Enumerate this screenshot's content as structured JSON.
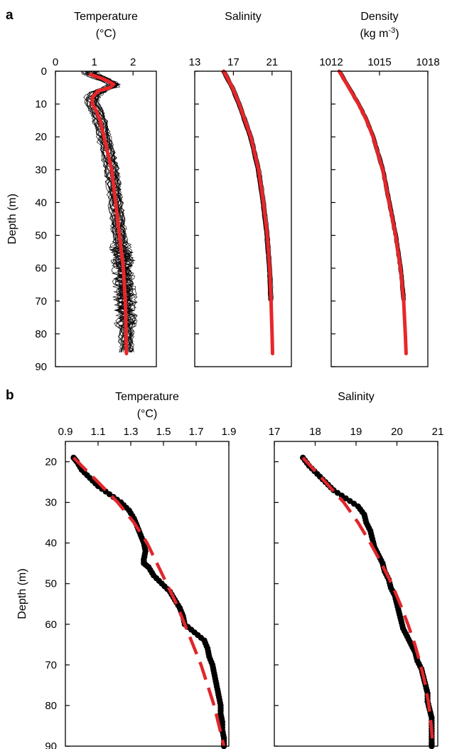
{
  "figure": {
    "panel_a_letter": "a",
    "panel_b_letter": "b"
  },
  "colors": {
    "profile": "#000000",
    "mean_profile": "#e8262a",
    "fit_line": "#e0262b"
  },
  "chart_data": [
    {
      "type": "line",
      "panel": "a",
      "axis_label": "Temperature",
      "axis_unit": "(°C)",
      "ylabel": "Depth (m)",
      "xlim": [
        0,
        2.6
      ],
      "x_ticks": [
        0,
        1,
        2
      ],
      "ylim": [
        0,
        90
      ],
      "y_inverted": true,
      "y_ticks": [
        0,
        10,
        20,
        30,
        40,
        50,
        60,
        70,
        80,
        90
      ],
      "mean_profile": {
        "depth": [
          1,
          2,
          3,
          4,
          5,
          6,
          8,
          10,
          12,
          15,
          20,
          25,
          30,
          40,
          50,
          60,
          70,
          80,
          86
        ],
        "values": [
          0.9,
          1.15,
          1.35,
          1.5,
          1.4,
          1.1,
          0.95,
          0.95,
          1.05,
          1.15,
          1.25,
          1.35,
          1.45,
          1.55,
          1.65,
          1.75,
          1.8,
          1.82,
          1.83
        ]
      }
    },
    {
      "type": "line",
      "panel": "a",
      "axis_label": "Salinity",
      "ylim": [
        0,
        90
      ],
      "y_inverted": true,
      "xlim": [
        13,
        23
      ],
      "x_ticks": [
        13,
        17,
        21
      ],
      "mean_profile": {
        "depth": [
          0,
          5,
          10,
          15,
          20,
          30,
          40,
          50,
          60,
          70,
          80,
          86
        ],
        "values": [
          16.0,
          16.9,
          17.6,
          18.2,
          18.8,
          19.6,
          20.1,
          20.5,
          20.75,
          20.9,
          21.0,
          21.05
        ]
      }
    },
    {
      "type": "line",
      "panel": "a",
      "axis_label": "Density",
      "axis_unit": "(kg m",
      "axis_unit_sup": "-3",
      "axis_unit_end": ")",
      "ylim": [
        0,
        90
      ],
      "y_inverted": true,
      "xlim": [
        1012,
        1018
      ],
      "x_ticks": [
        1012,
        1015,
        1018
      ],
      "mean_profile": {
        "depth": [
          0,
          5,
          10,
          15,
          20,
          30,
          40,
          50,
          60,
          70,
          80,
          86
        ],
        "values": [
          1012.5,
          1013.1,
          1013.7,
          1014.2,
          1014.6,
          1015.2,
          1015.6,
          1016.0,
          1016.3,
          1016.5,
          1016.6,
          1016.65
        ]
      }
    },
    {
      "type": "scatter",
      "panel": "b",
      "axis_label": "Temperature",
      "axis_unit": "(°C)",
      "ylabel": "Depth (m)",
      "xlim": [
        0.9,
        1.9
      ],
      "x_ticks": [
        0.9,
        1.1,
        1.3,
        1.5,
        1.7,
        1.9
      ],
      "ylim": [
        15,
        90
      ],
      "y_inverted": true,
      "y_ticks": [
        20,
        30,
        40,
        50,
        60,
        70,
        80,
        90
      ],
      "observations": {
        "depth": [
          19,
          20,
          22,
          24,
          26,
          28,
          30,
          32,
          34,
          36,
          38,
          40,
          42,
          44,
          45,
          46,
          48,
          50,
          52,
          54,
          56,
          58,
          60,
          62,
          64,
          66,
          68,
          70,
          72,
          74,
          76,
          78,
          80,
          82,
          84,
          86,
          88,
          90
        ],
        "values": [
          0.95,
          0.97,
          1.0,
          1.05,
          1.1,
          1.17,
          1.24,
          1.29,
          1.32,
          1.34,
          1.36,
          1.38,
          1.39,
          1.38,
          1.38,
          1.41,
          1.44,
          1.49,
          1.54,
          1.57,
          1.6,
          1.62,
          1.63,
          1.69,
          1.75,
          1.77,
          1.78,
          1.8,
          1.81,
          1.82,
          1.83,
          1.84,
          1.85,
          1.85,
          1.86,
          1.86,
          1.87,
          1.87
        ]
      },
      "fit": {
        "depth": [
          19,
          25,
          30,
          35,
          40,
          45,
          50,
          55,
          60,
          65,
          70,
          75,
          80,
          85,
          90
        ],
        "values": [
          0.95,
          1.1,
          1.22,
          1.32,
          1.4,
          1.46,
          1.52,
          1.58,
          1.63,
          1.68,
          1.73,
          1.77,
          1.81,
          1.84,
          1.87
        ]
      }
    },
    {
      "type": "scatter",
      "panel": "b",
      "axis_label": "Salinity",
      "xlim": [
        17,
        21
      ],
      "x_ticks": [
        17,
        18,
        19,
        20,
        21
      ],
      "ylim": [
        15,
        90
      ],
      "y_inverted": true,
      "observations": {
        "depth": [
          19,
          21,
          23,
          25,
          27,
          29,
          31,
          33,
          35,
          37,
          39,
          41,
          43,
          45,
          47,
          49,
          51,
          53,
          55,
          57,
          59,
          61,
          63,
          65,
          67,
          69,
          71,
          73,
          75,
          77,
          79,
          81,
          83,
          85,
          87,
          89,
          90
        ],
        "values": [
          17.7,
          17.85,
          18.05,
          18.25,
          18.45,
          18.75,
          19.05,
          19.2,
          19.25,
          19.35,
          19.4,
          19.45,
          19.55,
          19.65,
          19.7,
          19.8,
          19.85,
          19.95,
          20.0,
          20.05,
          20.1,
          20.15,
          20.25,
          20.35,
          20.45,
          20.5,
          20.6,
          20.65,
          20.7,
          20.75,
          20.75,
          20.8,
          20.85,
          20.85,
          20.85,
          20.85,
          20.85
        ]
      },
      "fit": {
        "depth": [
          19,
          25,
          30,
          35,
          40,
          45,
          50,
          55,
          60,
          65,
          70,
          75,
          80,
          85,
          90
        ],
        "values": [
          17.7,
          18.25,
          18.7,
          19.05,
          19.35,
          19.62,
          19.87,
          20.08,
          20.27,
          20.44,
          20.58,
          20.7,
          20.78,
          20.84,
          20.88
        ]
      }
    }
  ]
}
